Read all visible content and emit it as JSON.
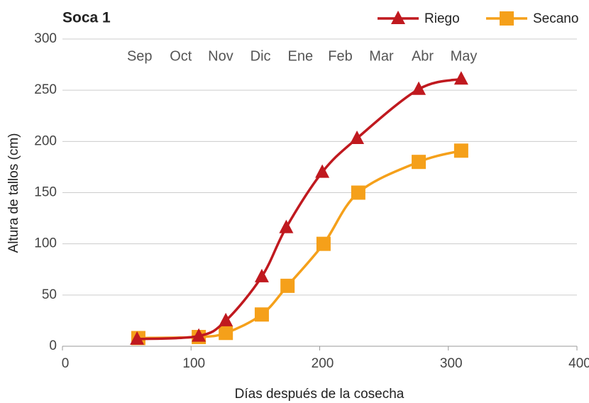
{
  "chart_data": {
    "type": "line",
    "title": "Soca 1",
    "xlabel": "Días después de la cosecha",
    "ylabel": "Altura de tallos (cm)",
    "xlim": [
      0,
      400
    ],
    "xticks": [
      0,
      100,
      200,
      300,
      400
    ],
    "ylim": [
      0,
      300
    ],
    "yticks": [
      0,
      50,
      100,
      150,
      200,
      250,
      300
    ],
    "grid": true,
    "legend": "top-right",
    "month_labels": {
      "labels": [
        "Sep",
        "Oct",
        "Nov",
        "Dic",
        "Ene",
        "Feb",
        "Mar",
        "Abr",
        "May"
      ],
      "x": [
        60,
        92,
        123,
        154,
        185,
        216,
        248,
        280,
        312
      ]
    },
    "series": [
      {
        "name": "Riego",
        "color": "#c0191f",
        "marker": "triangle",
        "x": [
          58,
          106,
          127,
          155,
          174,
          202,
          229,
          277,
          310
        ],
        "values": [
          7,
          10,
          25,
          68,
          116,
          170,
          203,
          251,
          261
        ]
      },
      {
        "name": "Secano",
        "color": "#f5a01a",
        "marker": "square",
        "x": [
          59,
          106,
          127,
          155,
          175,
          203,
          230,
          277,
          310
        ],
        "values": [
          8,
          9,
          13,
          31,
          59,
          100,
          150,
          180,
          191
        ]
      }
    ]
  }
}
